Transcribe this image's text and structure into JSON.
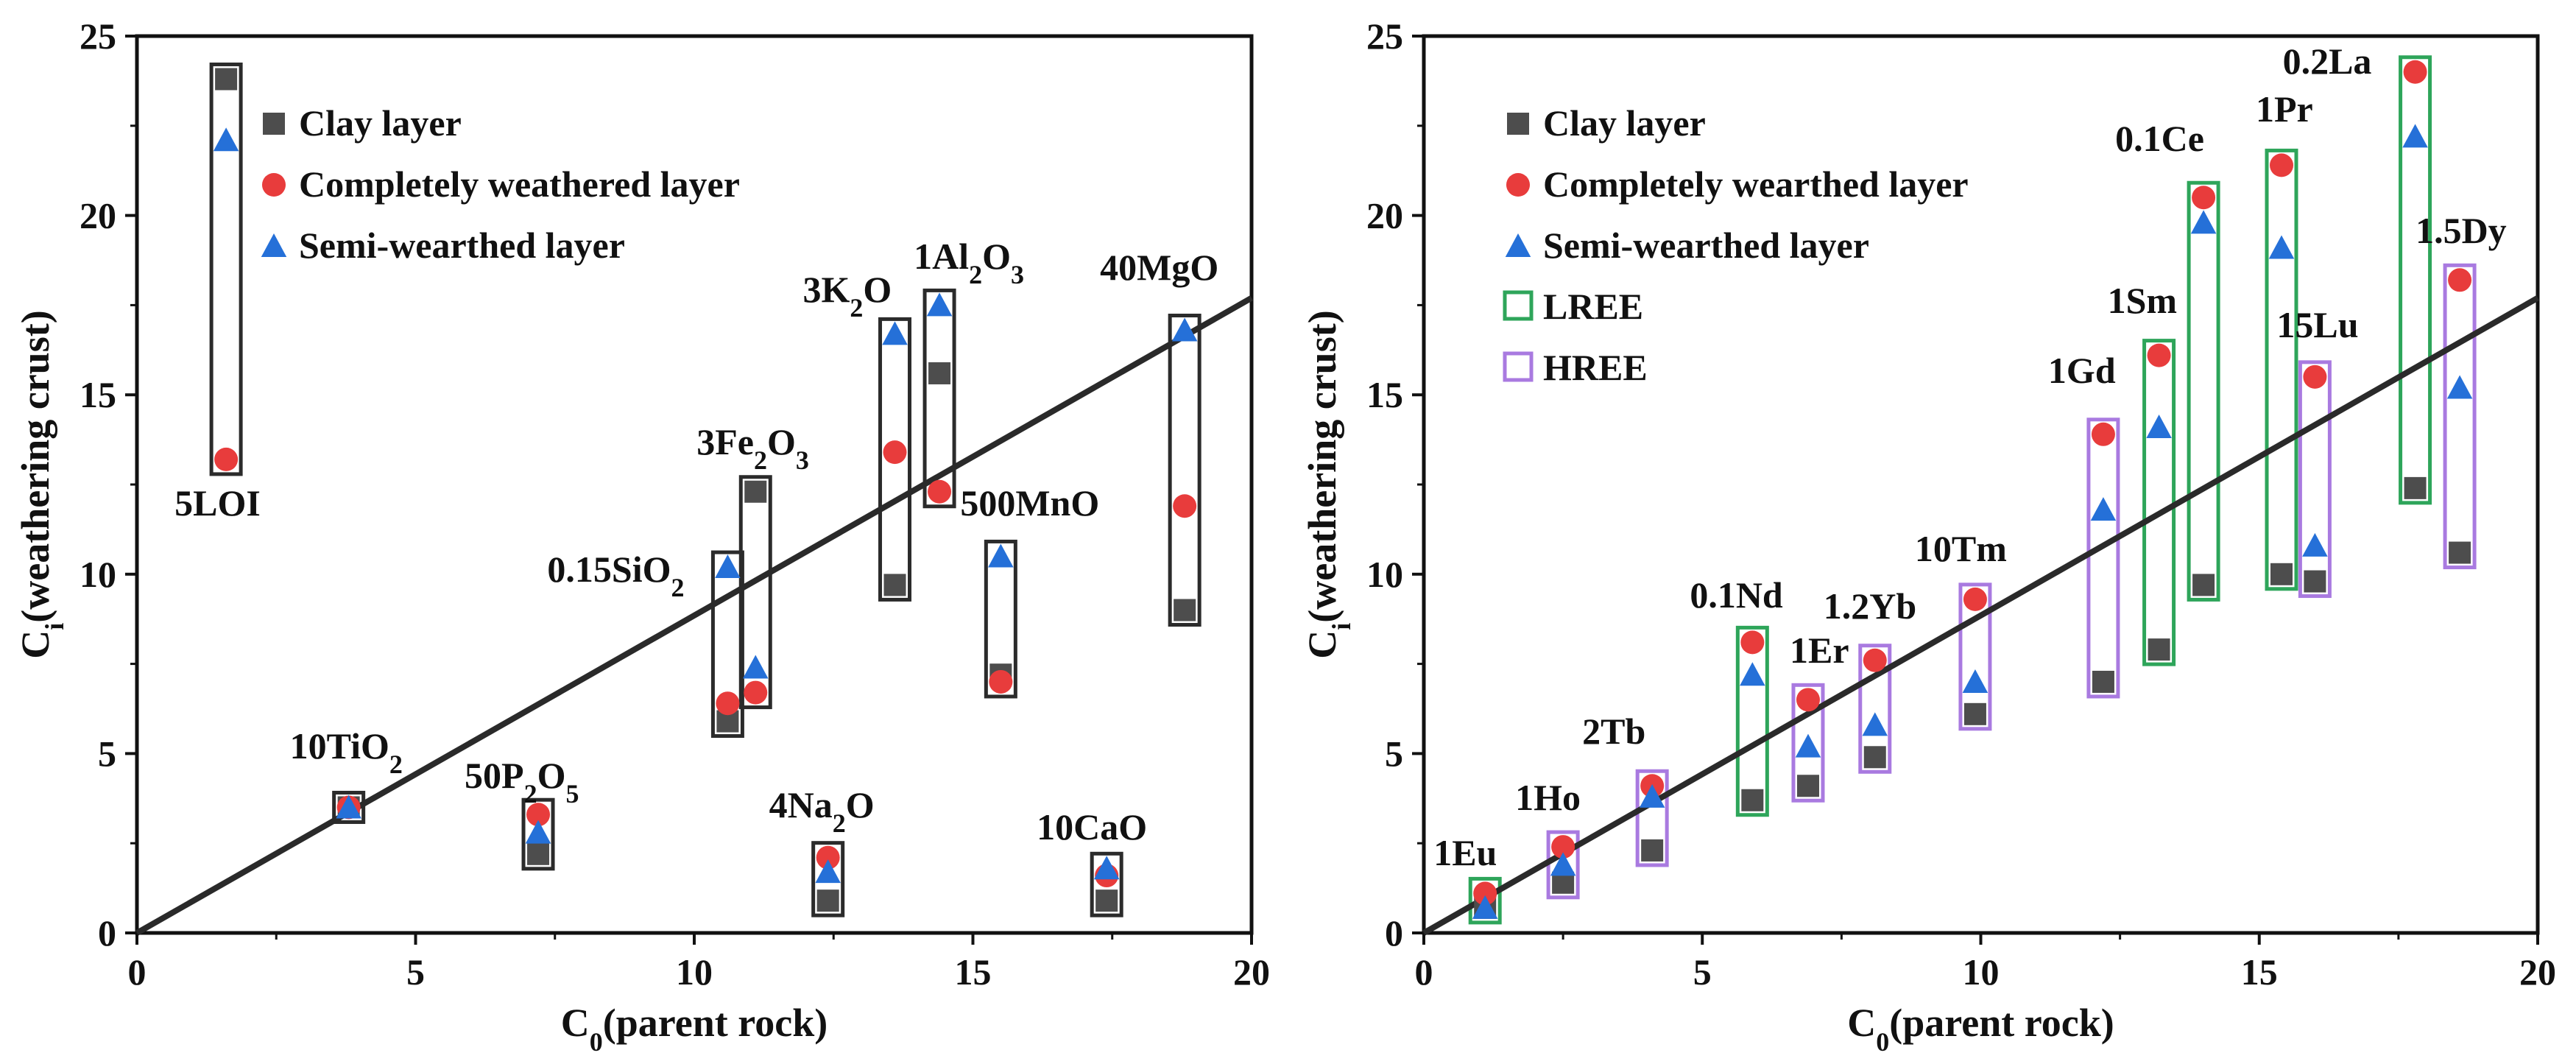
{
  "chart_data": [
    {
      "type": "scatter",
      "id": "left",
      "xlabel": "C",
      "xlabel_sub": "0",
      "xlabel_rest": "(parent rock)",
      "ylabel": "C",
      "ylabel_sub": "i",
      "ylabel_rest": "(weathering crust)",
      "xlim": [
        0,
        20
      ],
      "ylim": [
        0,
        25
      ],
      "xticks": [
        0,
        5,
        10,
        15,
        20
      ],
      "yticks": [
        0,
        5,
        10,
        15,
        20,
        25
      ],
      "fit_line": {
        "from": [
          0,
          0
        ],
        "to": [
          20,
          17.7
        ]
      },
      "legend": [
        {
          "marker": "square",
          "label": "Clay layer"
        },
        {
          "marker": "circle",
          "label": "Completely weathered layer"
        },
        {
          "marker": "triangle",
          "label": "Semi-wearthed layer"
        }
      ],
      "colors": {
        "clay": "#4d4d4d",
        "complete": "#e83c3c",
        "semi": "#2570d8",
        "box": "#2b2b2b"
      },
      "points": [
        {
          "x": 1.6,
          "clay": 23.8,
          "complete": 13.2,
          "semi": 22.1,
          "label": [
            [
              "5LOI",
              "n"
            ]
          ]
        },
        {
          "x": 3.8,
          "clay": 3.5,
          "complete": 3.5,
          "semi": 3.5,
          "label": [
            [
              "10TiO",
              "n"
            ],
            [
              "2",
              "s"
            ]
          ]
        },
        {
          "x": 7.2,
          "clay": 2.2,
          "complete": 3.3,
          "semi": 2.8,
          "label": [
            [
              "50P",
              "n"
            ],
            [
              "2",
              "s"
            ],
            [
              "O",
              "n"
            ],
            [
              "5",
              "s"
            ]
          ]
        },
        {
          "x": 10.6,
          "clay": 5.9,
          "complete": 6.4,
          "semi": 10.2,
          "label": [
            [
              "0.15SiO",
              "n"
            ],
            [
              "2",
              "s"
            ]
          ]
        },
        {
          "x": 11.1,
          "clay": 12.3,
          "complete": 6.7,
          "semi": 7.4,
          "label": [
            [
              "3Fe",
              "n"
            ],
            [
              "2",
              "s"
            ],
            [
              "O",
              "n"
            ],
            [
              "3",
              "s"
            ]
          ]
        },
        {
          "x": 12.4,
          "clay": 0.9,
          "complete": 2.1,
          "semi": 1.7,
          "label": [
            [
              "4Na",
              "n"
            ],
            [
              "2",
              "s"
            ],
            [
              "O",
              "n"
            ]
          ]
        },
        {
          "x": 13.6,
          "clay": 9.7,
          "complete": 13.4,
          "semi": 16.7,
          "label": [
            [
              "3K",
              "n"
            ],
            [
              "2",
              "s"
            ],
            [
              "O",
              "n"
            ]
          ]
        },
        {
          "x": 14.4,
          "clay": 15.6,
          "complete": 12.3,
          "semi": 17.5,
          "label": [
            [
              "1Al",
              "n"
            ],
            [
              "2",
              "s"
            ],
            [
              "O",
              "n"
            ],
            [
              "3",
              "s"
            ]
          ]
        },
        {
          "x": 15.5,
          "clay": 7.2,
          "complete": 7.0,
          "semi": 10.5,
          "label": [
            [
              "500MnO",
              "n"
            ]
          ]
        },
        {
          "x": 17.4,
          "clay": 0.9,
          "complete": 1.6,
          "semi": 1.8,
          "label": [
            [
              "10CaO",
              "n"
            ]
          ]
        },
        {
          "x": 18.8,
          "clay": 9.0,
          "complete": 11.9,
          "semi": 16.8,
          "label": [
            [
              "40MgO",
              "n"
            ]
          ]
        }
      ]
    },
    {
      "type": "scatter",
      "id": "right",
      "xlabel": "C",
      "xlabel_sub": "0",
      "xlabel_rest": "(parent rock)",
      "ylabel": "C",
      "ylabel_sub": "i",
      "ylabel_rest": "(weathering crust)",
      "xlim": [
        0,
        20
      ],
      "ylim": [
        0,
        25
      ],
      "xticks": [
        0,
        5,
        10,
        15,
        20
      ],
      "yticks": [
        0,
        5,
        10,
        15,
        20,
        25
      ],
      "fit_line": {
        "from": [
          0,
          0
        ],
        "to": [
          20,
          17.7
        ]
      },
      "legend": [
        {
          "marker": "square",
          "label": "Clay layer"
        },
        {
          "marker": "circle",
          "label": "Completely wearthed layer"
        },
        {
          "marker": "triangle",
          "label": "Semi-wearthed layer"
        },
        {
          "marker": "box-lree",
          "label": "LREE"
        },
        {
          "marker": "box-hree",
          "label": "HREE"
        }
      ],
      "colors": {
        "clay": "#4d4d4d",
        "complete": "#e83c3c",
        "semi": "#2570d8",
        "lree": "#2ea55a",
        "hree": "#a97ae0"
      },
      "points": [
        {
          "x": 1.1,
          "group": "lree",
          "clay": 0.7,
          "complete": 1.1,
          "semi": 0.7,
          "label": [
            [
              "1Eu",
              "n"
            ]
          ]
        },
        {
          "x": 2.5,
          "group": "hree",
          "clay": 1.4,
          "complete": 2.4,
          "semi": 1.9,
          "label": [
            [
              "1Ho",
              "n"
            ]
          ]
        },
        {
          "x": 4.1,
          "group": "hree",
          "clay": 2.3,
          "complete": 4.1,
          "semi": 3.8,
          "label": [
            [
              "2Tb",
              "n"
            ]
          ]
        },
        {
          "x": 5.9,
          "group": "lree",
          "clay": 3.7,
          "complete": 8.1,
          "semi": 7.2,
          "label": [
            [
              "0.1Nd",
              "n"
            ]
          ]
        },
        {
          "x": 6.9,
          "group": "hree",
          "clay": 4.1,
          "complete": 6.5,
          "semi": 5.2,
          "label": [
            [
              "1Er",
              "n"
            ]
          ]
        },
        {
          "x": 8.1,
          "group": "hree",
          "clay": 4.9,
          "complete": 7.6,
          "semi": 5.8,
          "label": [
            [
              "1.2Yb",
              "n"
            ]
          ]
        },
        {
          "x": 9.9,
          "group": "hree",
          "clay": 6.1,
          "complete": 9.3,
          "semi": 7.0,
          "label": [
            [
              "10Tm",
              "n"
            ]
          ]
        },
        {
          "x": 12.2,
          "group": "hree",
          "clay": 7.0,
          "complete": 13.9,
          "semi": 11.8,
          "label": [
            [
              "1Gd",
              "n"
            ]
          ]
        },
        {
          "x": 13.2,
          "group": "lree",
          "clay": 7.9,
          "complete": 16.1,
          "semi": 14.1,
          "label": [
            [
              "1Sm",
              "n"
            ]
          ]
        },
        {
          "x": 14.0,
          "group": "lree",
          "clay": 9.7,
          "complete": 20.5,
          "semi": 19.8,
          "label": [
            [
              "0.1Ce",
              "n"
            ]
          ]
        },
        {
          "x": 15.4,
          "group": "lree",
          "clay": 10.0,
          "complete": 21.4,
          "semi": 19.1,
          "label": [
            [
              "1Pr",
              "n"
            ]
          ]
        },
        {
          "x": 16.0,
          "group": "hree",
          "clay": 9.8,
          "complete": 15.5,
          "semi": 10.8,
          "label": [
            [
              "15Lu",
              "n"
            ]
          ]
        },
        {
          "x": 17.8,
          "group": "lree",
          "clay": 12.4,
          "complete": 24.0,
          "semi": 22.2,
          "label": [
            [
              "0.2La",
              "n"
            ]
          ]
        },
        {
          "x": 18.6,
          "group": "hree",
          "clay": 10.6,
          "complete": 18.2,
          "semi": 15.2,
          "label": [
            [
              "1.5Dy",
              "n"
            ]
          ]
        }
      ]
    }
  ]
}
